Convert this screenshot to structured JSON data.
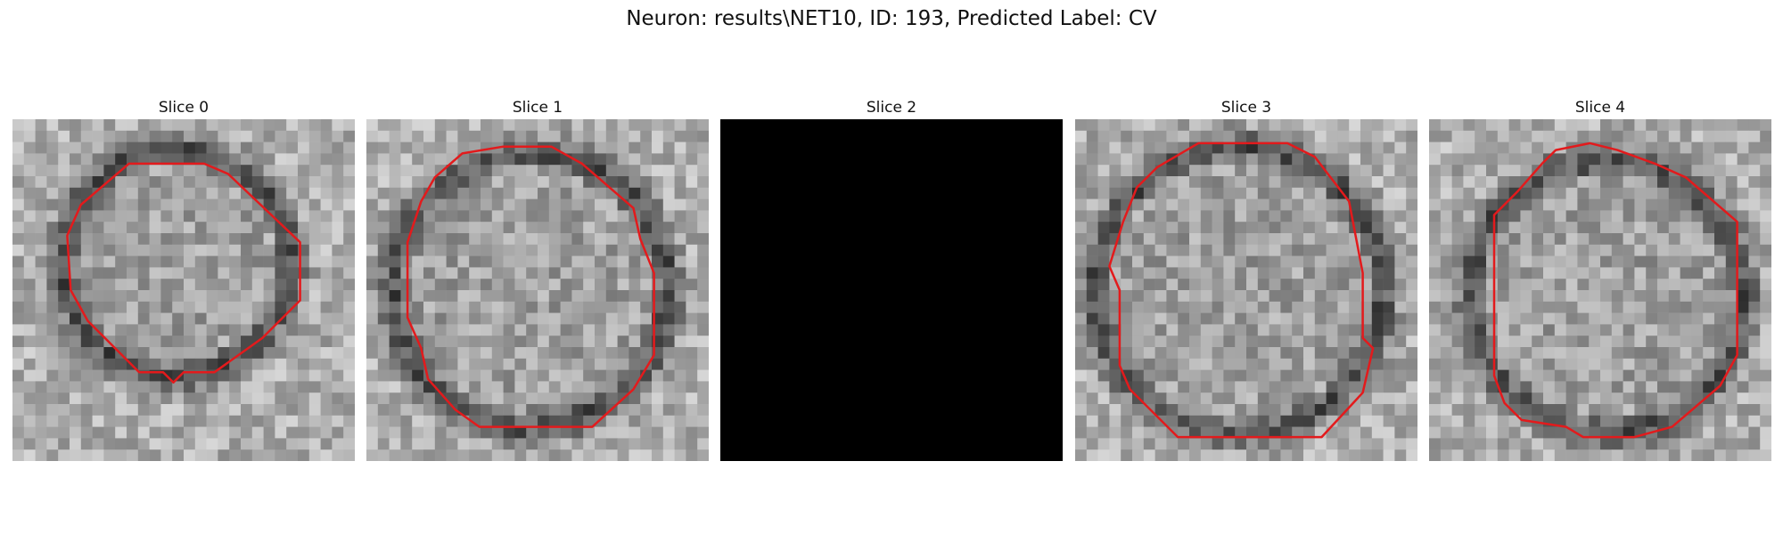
{
  "figure": {
    "title": "Neuron: results\\NET10, ID: 193, Predicted Label: CV"
  },
  "panels": [
    {
      "title": "Slice 0",
      "image": "grayscale-micrograph",
      "blank": false,
      "contour_color": "#e31a1c"
    },
    {
      "title": "Slice 1",
      "image": "grayscale-micrograph",
      "blank": false,
      "contour_color": "#e31a1c"
    },
    {
      "title": "Slice 2",
      "image": "black",
      "blank": true,
      "contour_color": null
    },
    {
      "title": "Slice 3",
      "image": "grayscale-micrograph",
      "blank": false,
      "contour_color": "#e31a1c"
    },
    {
      "title": "Slice 4",
      "image": "grayscale-micrograph",
      "blank": false,
      "contour_color": "#e31a1c"
    }
  ]
}
